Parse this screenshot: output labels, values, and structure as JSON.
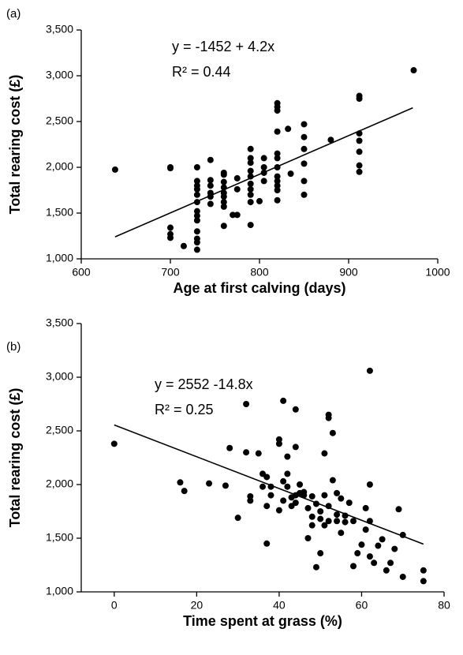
{
  "chart_data": [
    {
      "type": "scatter",
      "panel": "(a)",
      "xlabel": "Age at first calving (days)",
      "ylabel": "Total rearing cost (£)",
      "annotations": [
        "y = -1452 + 4.2x",
        "R² = 0.44"
      ],
      "color": "#000000",
      "x": [
        638,
        700,
        700,
        700,
        700,
        700,
        715,
        730,
        730,
        730,
        730,
        730,
        730,
        730,
        730,
        730,
        730,
        730,
        730,
        730,
        745,
        745,
        745,
        745,
        745,
        745,
        760,
        760,
        760,
        760,
        760,
        760,
        760,
        760,
        760,
        775,
        775,
        775,
        770,
        790,
        790,
        790,
        790,
        790,
        790,
        790,
        790,
        790,
        790,
        800,
        805,
        805,
        805,
        805,
        820,
        820,
        820,
        820,
        820,
        820,
        820,
        820,
        820,
        820,
        820,
        820,
        832,
        835,
        850,
        850,
        850,
        850,
        850,
        850,
        880,
        912,
        912,
        912,
        912,
        912,
        912,
        912,
        973
      ],
      "y": [
        1975,
        2000,
        1990,
        1340,
        1270,
        1230,
        1140,
        2000,
        1850,
        1800,
        1760,
        1700,
        1620,
        1520,
        1470,
        1420,
        1300,
        1220,
        1180,
        1100,
        2080,
        1860,
        1800,
        1720,
        1680,
        1600,
        1940,
        1920,
        1840,
        1780,
        1720,
        1680,
        1620,
        1570,
        1360,
        1880,
        1760,
        1480,
        1480,
        2200,
        2100,
        2050,
        1960,
        1900,
        1820,
        1760,
        1700,
        1620,
        1370,
        1630,
        2100,
        2000,
        1940,
        1850,
        2700,
        2660,
        2620,
        2390,
        2150,
        2100,
        2000,
        1900,
        1850,
        1800,
        1750,
        1640,
        2420,
        1930,
        2470,
        2330,
        2200,
        2040,
        1850,
        1700,
        2300,
        2780,
        2750,
        2370,
        2290,
        2170,
        2020,
        1950,
        3060
      ],
      "trendline": {
        "x": [
          638,
          972
        ],
        "y": [
          1240,
          2650
        ]
      },
      "xlim": [
        600,
        1000
      ],
      "ylim": [
        1000,
        3500
      ],
      "xticks": [
        600,
        700,
        800,
        900,
        1000
      ],
      "yticks": [
        {
          "value": 1000,
          "label": "1,000"
        },
        {
          "value": 1500,
          "label": "1,500"
        },
        {
          "value": 2000,
          "label": "2,000"
        },
        {
          "value": 2500,
          "label": "2,500"
        },
        {
          "value": 3000,
          "label": "3,000"
        },
        {
          "value": 3500,
          "label": "3,500"
        }
      ]
    },
    {
      "type": "scatter",
      "panel": "(b)",
      "xlabel": "Time spent at grass (%)",
      "ylabel": "Total rearing cost (£)",
      "annotations": [
        "y = 2552 -14.8x",
        "R² = 0.25"
      ],
      "color": "#000000",
      "x": [
        0,
        16,
        17,
        23,
        27,
        28,
        30,
        32,
        32,
        33,
        33,
        35,
        36,
        36,
        37,
        37,
        37,
        38,
        38,
        40,
        40,
        40,
        41,
        41,
        41,
        42,
        42,
        42,
        43,
        43,
        44,
        44,
        44,
        44,
        45,
        45,
        46,
        46,
        47,
        47,
        48,
        48,
        48,
        49,
        49,
        50,
        50,
        50,
        51,
        51,
        51,
        52,
        52,
        52,
        52,
        53,
        53,
        54,
        54,
        54,
        55,
        55,
        56,
        56,
        57,
        58,
        58,
        59,
        60,
        61,
        61,
        62,
        62,
        62,
        62,
        63,
        64,
        65,
        66,
        67,
        68,
        69,
        70,
        70,
        75,
        75
      ],
      "y": [
        2380,
        2020,
        1940,
        2010,
        1990,
        2340,
        1690,
        2750,
        2300,
        1850,
        1890,
        2290,
        1980,
        2100,
        1800,
        2070,
        1450,
        1900,
        1980,
        1760,
        2420,
        2380,
        1850,
        2030,
        2780,
        2260,
        1980,
        2100,
        1800,
        1880,
        1900,
        1830,
        2700,
        2350,
        2000,
        1920,
        1900,
        1930,
        1780,
        1500,
        1890,
        1700,
        1620,
        1230,
        1820,
        1680,
        1360,
        1750,
        1620,
        2290,
        1900,
        1800,
        2620,
        2650,
        1660,
        2480,
        2040,
        1720,
        1660,
        1920,
        1870,
        1550,
        1710,
        1650,
        1830,
        1240,
        1660,
        1360,
        1440,
        1580,
        1780,
        1660,
        1330,
        2000,
        3060,
        1270,
        1430,
        1490,
        1200,
        1270,
        1400,
        1770,
        1530,
        1140,
        1200,
        1100
      ],
      "trendline": {
        "x": [
          0,
          75
        ],
        "y": [
          2555,
          1445
        ]
      },
      "xlim": [
        -8,
        80
      ],
      "ylim": [
        1000,
        3500
      ],
      "xticks": [
        0,
        20,
        40,
        60,
        80
      ],
      "yticks": [
        {
          "value": 1000,
          "label": "1,000"
        },
        {
          "value": 1500,
          "label": "1,500"
        },
        {
          "value": 2000,
          "label": "2,000"
        },
        {
          "value": 2500,
          "label": "2,500"
        },
        {
          "value": 3000,
          "label": "3,000"
        },
        {
          "value": 3500,
          "label": "3,500"
        }
      ]
    }
  ]
}
